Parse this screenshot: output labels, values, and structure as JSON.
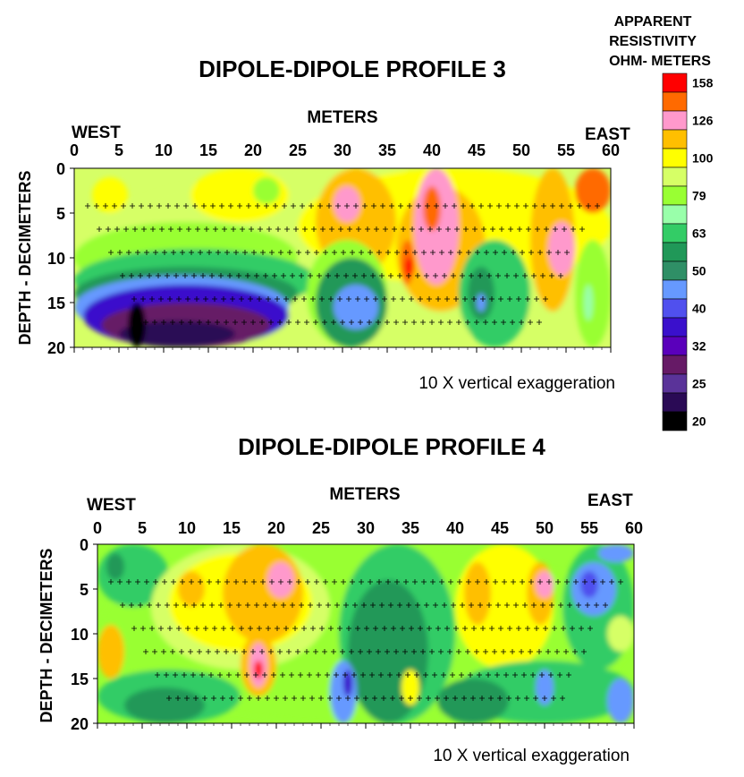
{
  "legend": {
    "title_lines": [
      "APPARENT",
      "RESISTIVITY",
      "OHM- METERS"
    ],
    "levels": [
      {
        "label": "158",
        "color": "#ff0000"
      },
      {
        "label": "",
        "color": "#ff6a00"
      },
      {
        "label": "126",
        "color": "#ff99cc"
      },
      {
        "label": "",
        "color": "#ffbf00"
      },
      {
        "label": "100",
        "color": "#ffff00"
      },
      {
        "label": "",
        "color": "#d6ff66"
      },
      {
        "label": "79",
        "color": "#99ff33"
      },
      {
        "label": "",
        "color": "#99ffaa"
      },
      {
        "label": "63",
        "color": "#33cc66"
      },
      {
        "label": "",
        "color": "#209858"
      },
      {
        "label": "50",
        "color": "#2f8f66"
      },
      {
        "label": "",
        "color": "#6699ff"
      },
      {
        "label": "40",
        "color": "#5050ee"
      },
      {
        "label": "",
        "color": "#3a10cc"
      },
      {
        "label": "32",
        "color": "#5a00bb"
      },
      {
        "label": "",
        "color": "#661a66"
      },
      {
        "label": "25",
        "color": "#5a3399"
      },
      {
        "label": "",
        "color": "#2a0a55"
      },
      {
        "label": "20",
        "color": "#000000"
      }
    ]
  },
  "chart_data": [
    {
      "type": "heatmap",
      "title": "DIPOLE-DIPOLE PROFILE 3",
      "xlabel": "METERS",
      "ylabel": "DEPTH - DECIMETERS",
      "west_label": "WEST",
      "east_label": "EAST",
      "note": "10 X vertical exaggeration",
      "xlim": [
        0,
        60
      ],
      "ylim": [
        0,
        20
      ],
      "x_ticks": [
        "0",
        "5",
        "10",
        "15",
        "20",
        "25",
        "30",
        "35",
        "40",
        "45",
        "50",
        "55",
        "60"
      ],
      "y_ticks": [
        "0",
        "5",
        "10",
        "15",
        "20"
      ],
      "zones": [
        {
          "color": "#d6ff66",
          "x": [
            0,
            60
          ],
          "y": [
            0,
            20
          ]
        },
        {
          "color": "#99ff33",
          "x": [
            0,
            25
          ],
          "y": [
            6,
            14
          ]
        },
        {
          "color": "#33cc66",
          "x": [
            0,
            27
          ],
          "y": [
            9,
            16
          ]
        },
        {
          "color": "#209858",
          "x": [
            0,
            25
          ],
          "y": [
            11,
            17
          ]
        },
        {
          "color": "#6699ff",
          "x": [
            0,
            24
          ],
          "y": [
            12,
            19
          ]
        },
        {
          "color": "#3a10cc",
          "x": [
            1,
            24
          ],
          "y": [
            13,
            20
          ]
        },
        {
          "color": "#661a66",
          "x": [
            3,
            22
          ],
          "y": [
            15,
            20
          ]
        },
        {
          "color": "#2a0a55",
          "x": [
            5,
            18
          ],
          "y": [
            17,
            20
          ]
        },
        {
          "color": "#000000",
          "x": [
            6,
            8
          ],
          "y": [
            15,
            20
          ]
        },
        {
          "color": "#ffff00",
          "x": [
            2,
            6
          ],
          "y": [
            1,
            5
          ]
        },
        {
          "color": "#ffff00",
          "x": [
            13,
            24
          ],
          "y": [
            0,
            6
          ]
        },
        {
          "color": "#ffff00",
          "x": [
            25,
            60
          ],
          "y": [
            0,
            13
          ]
        },
        {
          "color": "#ffbf00",
          "x": [
            27,
            36
          ],
          "y": [
            0,
            12
          ]
        },
        {
          "color": "#ff99cc",
          "x": [
            29,
            32
          ],
          "y": [
            2,
            6
          ]
        },
        {
          "color": "#ffbf00",
          "x": [
            36,
            46
          ],
          "y": [
            2,
            16
          ]
        },
        {
          "color": "#ff99cc",
          "x": [
            38,
            43
          ],
          "y": [
            0,
            13
          ]
        },
        {
          "color": "#ff6a00",
          "x": [
            39,
            41
          ],
          "y": [
            2,
            7
          ]
        },
        {
          "color": "#ff6a00",
          "x": [
            36.5,
            38
          ],
          "y": [
            8,
            13
          ]
        },
        {
          "color": "#ff0000",
          "x": [
            37,
            38
          ],
          "y": [
            10,
            12
          ]
        },
        {
          "color": "#ffbf00",
          "x": [
            51,
            56
          ],
          "y": [
            0,
            16
          ]
        },
        {
          "color": "#ff99cc",
          "x": [
            53,
            56
          ],
          "y": [
            6,
            12
          ]
        },
        {
          "color": "#ff6a00",
          "x": [
            56,
            60
          ],
          "y": [
            0,
            5
          ]
        },
        {
          "color": "#99ff33",
          "x": [
            26,
            35
          ],
          "y": [
            8,
            20
          ]
        },
        {
          "color": "#209858",
          "x": [
            27,
            35
          ],
          "y": [
            10,
            20
          ]
        },
        {
          "color": "#6699ff",
          "x": [
            29,
            34
          ],
          "y": [
            13,
            18
          ]
        },
        {
          "color": "#33cc66",
          "x": [
            43,
            51
          ],
          "y": [
            8,
            20
          ]
        },
        {
          "color": "#209858",
          "x": [
            44,
            47
          ],
          "y": [
            11,
            17
          ]
        },
        {
          "color": "#6699ff",
          "x": [
            45,
            46
          ],
          "y": [
            14,
            16
          ]
        },
        {
          "color": "#99ff33",
          "x": [
            56,
            60
          ],
          "y": [
            8,
            20
          ]
        },
        {
          "color": "#99ffaa",
          "x": [
            57,
            58
          ],
          "y": [
            13,
            17
          ]
        },
        {
          "color": "#99ff33",
          "x": [
            20,
            23
          ],
          "y": [
            1,
            4
          ]
        }
      ]
    },
    {
      "type": "heatmap",
      "title": "DIPOLE-DIPOLE PROFILE 4",
      "xlabel": "METERS",
      "ylabel": "DEPTH - DECIMETERS",
      "west_label": "WEST",
      "east_label": "EAST",
      "note": "10 X vertical exaggeration",
      "xlim": [
        0,
        60
      ],
      "ylim": [
        0,
        20
      ],
      "x_ticks": [
        "0",
        "5",
        "10",
        "15",
        "20",
        "25",
        "30",
        "35",
        "40",
        "45",
        "50",
        "55",
        "60"
      ],
      "y_ticks": [
        "0",
        "5",
        "10",
        "15",
        "20"
      ],
      "zones": [
        {
          "color": "#99ff33",
          "x": [
            0,
            60
          ],
          "y": [
            0,
            20
          ]
        },
        {
          "color": "#33cc66",
          "x": [
            0,
            8
          ],
          "y": [
            0,
            7
          ]
        },
        {
          "color": "#209858",
          "x": [
            1,
            3
          ],
          "y": [
            1,
            4
          ]
        },
        {
          "color": "#d6ff66",
          "x": [
            6,
            26
          ],
          "y": [
            0,
            14
          ]
        },
        {
          "color": "#ffff00",
          "x": [
            8,
            24
          ],
          "y": [
            1,
            12
          ]
        },
        {
          "color": "#ffbf00",
          "x": [
            14,
            23
          ],
          "y": [
            0,
            11
          ]
        },
        {
          "color": "#ffbf00",
          "x": [
            9,
            12
          ],
          "y": [
            3,
            7
          ]
        },
        {
          "color": "#ff99cc",
          "x": [
            19,
            22
          ],
          "y": [
            2,
            6
          ]
        },
        {
          "color": "#ffbf00",
          "x": [
            0,
            3
          ],
          "y": [
            9,
            15
          ]
        },
        {
          "color": "#ffbf00",
          "x": [
            16,
            20
          ],
          "y": [
            10,
            17
          ]
        },
        {
          "color": "#ff99cc",
          "x": [
            17,
            19
          ],
          "y": [
            11,
            16
          ]
        },
        {
          "color": "#ff0000",
          "x": [
            17.5,
            18.5
          ],
          "y": [
            13,
            15
          ]
        },
        {
          "color": "#33cc66",
          "x": [
            0,
            16
          ],
          "y": [
            14,
            20
          ]
        },
        {
          "color": "#209858",
          "x": [
            3,
            12
          ],
          "y": [
            16,
            20
          ]
        },
        {
          "color": "#33cc66",
          "x": [
            27,
            40
          ],
          "y": [
            0,
            20
          ]
        },
        {
          "color": "#209858",
          "x": [
            28,
            37
          ],
          "y": [
            4,
            20
          ]
        },
        {
          "color": "#6699ff",
          "x": [
            26,
            29
          ],
          "y": [
            13,
            20
          ]
        },
        {
          "color": "#3a10cc",
          "x": [
            27.5,
            28.5
          ],
          "y": [
            14,
            17
          ]
        },
        {
          "color": "#ffff00",
          "x": [
            34,
            36
          ],
          "y": [
            14,
            18
          ]
        },
        {
          "color": "#ffff00",
          "x": [
            40,
            51
          ],
          "y": [
            0,
            14
          ]
        },
        {
          "color": "#ffbf00",
          "x": [
            41,
            44
          ],
          "y": [
            2,
            9
          ]
        },
        {
          "color": "#ffbf00",
          "x": [
            48,
            51
          ],
          "y": [
            2,
            9
          ]
        },
        {
          "color": "#ff99cc",
          "x": [
            49,
            51
          ],
          "y": [
            3,
            6
          ]
        },
        {
          "color": "#33cc66",
          "x": [
            40,
            60
          ],
          "y": [
            13,
            20
          ]
        },
        {
          "color": "#209858",
          "x": [
            38,
            46
          ],
          "y": [
            15,
            20
          ]
        },
        {
          "color": "#6699ff",
          "x": [
            49,
            51
          ],
          "y": [
            14,
            18
          ]
        },
        {
          "color": "#33cc66",
          "x": [
            52,
            60
          ],
          "y": [
            0,
            14
          ]
        },
        {
          "color": "#6699ff",
          "x": [
            53,
            58
          ],
          "y": [
            2,
            8
          ]
        },
        {
          "color": "#5050ee",
          "x": [
            54,
            56
          ],
          "y": [
            3,
            6
          ]
        },
        {
          "color": "#6699ff",
          "x": [
            56,
            60
          ],
          "y": [
            0,
            2
          ]
        },
        {
          "color": "#d6ff66",
          "x": [
            57,
            60
          ],
          "y": [
            8,
            12
          ]
        },
        {
          "color": "#6699ff",
          "x": [
            57,
            60
          ],
          "y": [
            15,
            20
          ]
        }
      ]
    }
  ]
}
